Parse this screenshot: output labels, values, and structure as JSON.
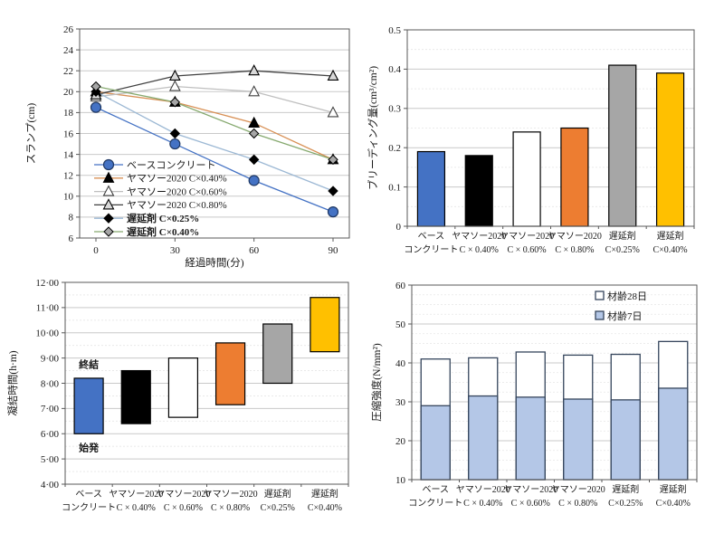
{
  "figure": {
    "background": "#FFFFFF"
  },
  "shared": {
    "axis_color": "#595959",
    "grid_major_color": "#C9C9C9",
    "grid_minor_color": "#E6E6E6",
    "categories": [
      [
        "ベース",
        "コンクリート"
      ],
      [
        "ヤマソー2020",
        "C × 0.40%"
      ],
      [
        "ヤマソー2020",
        "C × 0.60%"
      ],
      [
        "ヤマソー2020",
        "C × 0.80%"
      ],
      [
        "遅延剤",
        "C×0.25%"
      ],
      [
        "遅延剤",
        "C×0.40%"
      ]
    ]
  },
  "chart_data": [
    {
      "id": "slump-line-chart",
      "type": "line",
      "title": "",
      "xlabel": "経過時間(分)",
      "ylabel": "スランプ(cm)",
      "x": [
        0,
        30,
        60,
        90
      ],
      "xtick_labels": [
        "0",
        "30",
        "60",
        "90"
      ],
      "ylim": [
        6,
        26
      ],
      "ytick_labels": [
        "6",
        "8",
        "10",
        "12",
        "14",
        "16",
        "18",
        "20",
        "22",
        "24",
        "26"
      ],
      "grid": "major-horizontal",
      "legend_position": "inside-lower-left",
      "series": [
        {
          "name": "ベースコンクリート",
          "values": [
            18.5,
            15.0,
            11.5,
            8.5
          ],
          "line_color": "#4472C4",
          "marker": "circle",
          "marker_fill": "#4472C4",
          "marker_edge": "#1F3864",
          "bold": false
        },
        {
          "name": "ヤマソー2020 C×0.40%",
          "values": [
            20.0,
            19.0,
            17.0,
            13.5
          ],
          "line_color": "#D89055",
          "marker": "triangle",
          "marker_fill": "#000000",
          "marker_edge": "#000000",
          "bold": false
        },
        {
          "name": "ヤマソー2020 C×0.60%",
          "values": [
            19.5,
            20.5,
            20.0,
            18.0
          ],
          "line_color": "#BFBFBF",
          "marker": "triangle",
          "marker_fill": "#FFFFFF",
          "marker_edge": "#404040",
          "bold": false
        },
        {
          "name": "ヤマソー2020 C×0.80%",
          "values": [
            19.7,
            21.5,
            22.0,
            21.5
          ],
          "line_color": "#404040",
          "marker": "triangle",
          "marker_fill": "#D9D9D9",
          "marker_edge": "#000000",
          "bold": false
        },
        {
          "name": "遅延剤 C×0.25%",
          "values": [
            20.0,
            16.0,
            13.5,
            10.5
          ],
          "line_color": "#9CB8D4",
          "marker": "diamond",
          "marker_fill": "#000000",
          "marker_edge": "#000000",
          "bold": true
        },
        {
          "name": "遅延剤 C×0.40%",
          "values": [
            20.5,
            19.0,
            16.0,
            13.5
          ],
          "line_color": "#86A96F",
          "marker": "diamond",
          "marker_fill": "#A6A6A6",
          "marker_edge": "#000000",
          "bold": true
        }
      ]
    },
    {
      "id": "bleeding-bar-chart",
      "type": "bar",
      "title": "",
      "xlabel": "",
      "ylabel": "ブリーディング量(cm³/cm²)",
      "values": [
        0.19,
        0.18,
        0.24,
        0.25,
        0.41,
        0.39
      ],
      "bar_colors": [
        "#4472C4",
        "#000000",
        "#FFFFFF",
        "#ED7D31",
        "#A6A6A6",
        "#FFC000"
      ],
      "bar_edge": "#000000",
      "ylim": [
        0,
        0.5
      ],
      "ytick_labels": [
        "0",
        "0.1",
        "0.2",
        "0.3",
        "0.4",
        "0.5"
      ],
      "minor_grid_step": 0.05,
      "grid": "major+minor-horizontal"
    },
    {
      "id": "setting-time-range-chart",
      "type": "range-bar",
      "title": "",
      "xlabel": "",
      "ylabel": "凝結時間(h·m)",
      "ranges": [
        [
          6.0,
          8.2
        ],
        [
          6.4,
          8.5
        ],
        [
          6.65,
          9.0
        ],
        [
          7.15,
          9.6
        ],
        [
          8.0,
          10.35
        ],
        [
          9.25,
          11.4
        ]
      ],
      "bar_colors": [
        "#4472C4",
        "#000000",
        "#FFFFFF",
        "#ED7D31",
        "#A6A6A6",
        "#FFC000"
      ],
      "bar_edge": "#000000",
      "ylim": [
        4,
        12
      ],
      "ytick_labels": [
        "4·00",
        "5·00",
        "6·00",
        "7·00",
        "8·00",
        "9·00",
        "10·00",
        "11·00",
        "12·00"
      ],
      "minor_grid_step": 0.5,
      "grid": "major+minor-horizontal",
      "annotations": [
        {
          "text": "終結",
          "category_index": 0,
          "value": 8.75
        },
        {
          "text": "始発",
          "category_index": 0,
          "value": 5.45
        }
      ]
    },
    {
      "id": "compressive-strength-bar-chart",
      "type": "overlay-bar",
      "title": "",
      "xlabel": "",
      "ylabel": "圧縮強度(N/mm²)",
      "series": [
        {
          "name": "材齢28日",
          "values": [
            41.0,
            41.3,
            42.8,
            42.0,
            42.2,
            45.5
          ],
          "fill": "#FFFFFF"
        },
        {
          "name": "材齢7日",
          "values": [
            29.0,
            31.5,
            31.2,
            30.7,
            30.5,
            33.5
          ],
          "fill": "#B4C7E7"
        }
      ],
      "bar_edge": "#35455C",
      "ylim": [
        10,
        60
      ],
      "ytick_labels": [
        "10",
        "20",
        "30",
        "40",
        "50",
        "60"
      ],
      "minor_grid_step": 2.5,
      "grid": "major+minor-horizontal",
      "legend": [
        "材齢28日",
        "材齢7日"
      ],
      "legend_position": "inside-upper-right"
    }
  ]
}
